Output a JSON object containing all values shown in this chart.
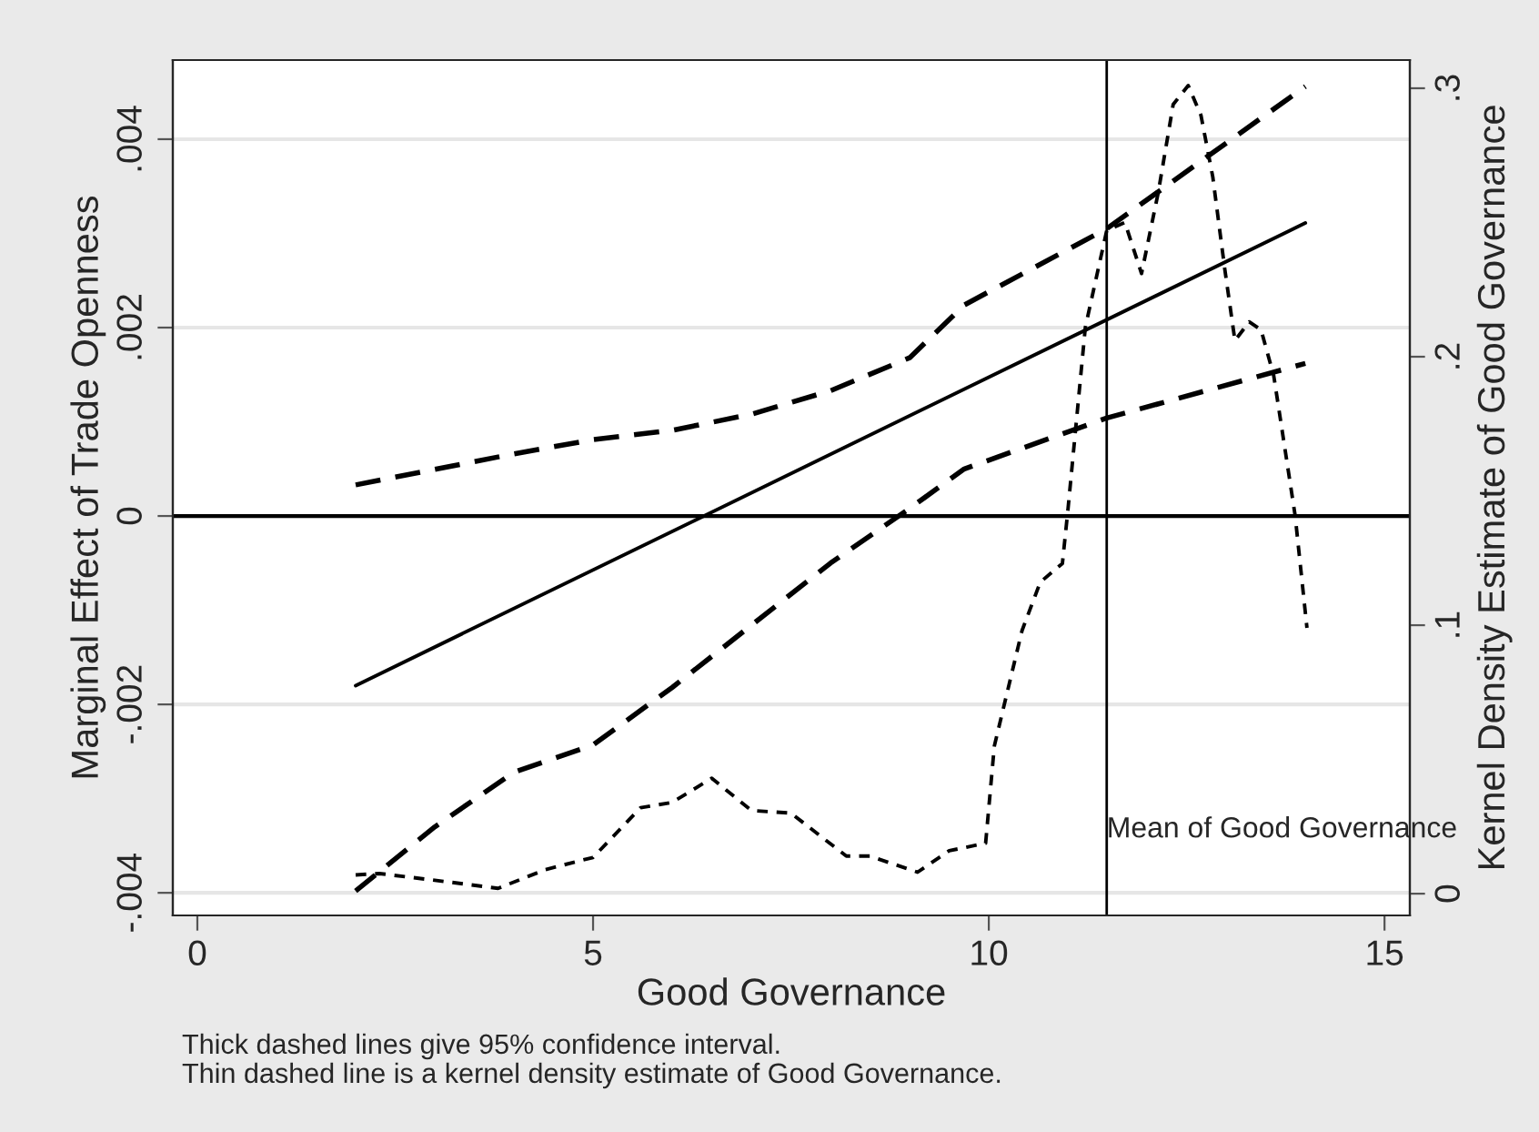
{
  "chart_data": {
    "type": "line",
    "xlabel": "Good Governance",
    "ylabel": "Marginal Effect of Trade Openness",
    "y2label": "Kernel Density Estimate of Good Governance",
    "series": [
      {
        "color": "#000000",
        "line_style": "solid",
        "x": [
          2,
          14
        ],
        "values": [
          -0.0018,
          0.00311
        ]
      },
      {
        "color": "#000000",
        "line_style": "dashed",
        "x": [
          2,
          4,
          5,
          6,
          7,
          8,
          9,
          9.69,
          11.49,
          14
        ],
        "values": [
          0.00033,
          0.00066,
          0.00081,
          0.00091,
          0.00108,
          0.00133,
          0.00168,
          0.00224,
          0.00305,
          0.00456
        ]
      },
      {
        "color": "#000000",
        "line_style": "dashed",
        "x": [
          2,
          3,
          4,
          5,
          6,
          7,
          8,
          9,
          9.69,
          11.49,
          14
        ],
        "values": [
          -0.00398,
          -0.0033,
          -0.00272,
          -0.00243,
          -0.00182,
          -0.00116,
          -0.0005,
          8e-05,
          0.0005,
          0.00104,
          0.00162
        ]
      },
      {
        "color": "#000000",
        "line_style": "dotted",
        "axis": "y2",
        "x": [
          2,
          2.3,
          3,
          3.8,
          4.4,
          5,
          5.6,
          6,
          6.5,
          7,
          7.5,
          8.2,
          8.5,
          9.1,
          9.5,
          9.96,
          10.07,
          10.42,
          10.65,
          10.93,
          11.0,
          11.22,
          11.49,
          11.72,
          11.93,
          12.14,
          12.33,
          12.52,
          12.68,
          12.83,
          12.98,
          13.11,
          13.29,
          13.44,
          13.6,
          13.87,
          14.02
        ],
        "values": [
          0.007,
          0.0075,
          0.005,
          0.002,
          0.009,
          0.0135,
          0.032,
          0.034,
          0.043,
          0.031,
          0.03,
          0.014,
          0.014,
          0.008,
          0.016,
          0.0188,
          0.055,
          0.098,
          0.116,
          0.123,
          0.143,
          0.211,
          0.247,
          0.25,
          0.231,
          0.261,
          0.294,
          0.301,
          0.29,
          0.267,
          0.233,
          0.206,
          0.213,
          0.21,
          0.193,
          0.141,
          0.099
        ]
      }
    ],
    "xlim": [
      -0.31,
      15.32
    ],
    "xticks": [
      0,
      5,
      10,
      15
    ],
    "ylim": [
      -0.00424,
      0.00484
    ],
    "yticks": [
      {
        "value": -0.004,
        "label": "-.004"
      },
      {
        "value": -0.002,
        "label": "-.002"
      },
      0,
      {
        "value": 0.002,
        "label": ".002"
      },
      {
        "value": 0.004,
        "label": ".004"
      }
    ],
    "y2lim": [
      -0.0081,
      0.3105
    ],
    "y2ticks": [
      0,
      {
        "value": 0.1,
        "label": ".1"
      },
      {
        "value": 0.2,
        "label": ".2"
      },
      {
        "value": 0.3,
        "label": ".3"
      }
    ],
    "ref_lines": [
      {
        "axis": "y",
        "value": 0,
        "color": "#000000"
      },
      {
        "axis": "x",
        "value": 11.49,
        "label": "Mean of Good Governance",
        "color": "#000000"
      }
    ],
    "grid": "y",
    "legend": false,
    "annotations": [
      "Thick dashed lines give 95% confidence interval.",
      "Thin dashed line is a kernel density estimate of Good Governance."
    ]
  }
}
